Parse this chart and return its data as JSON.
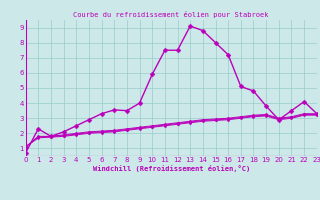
{
  "title": "Courbe du refroidissement éolien pour Stabroek",
  "xlabel": "Windchill (Refroidissement éolien,°C)",
  "background_color": "#cce8e8",
  "line_color": "#bb00bb",
  "grid_color": "#99cccc",
  "xmin": 0,
  "xmax": 23,
  "ymin": 0.5,
  "ymax": 9.5,
  "yticks": [
    1,
    2,
    3,
    4,
    5,
    6,
    7,
    8,
    9
  ],
  "xticks": [
    0,
    1,
    2,
    3,
    4,
    5,
    6,
    7,
    8,
    9,
    10,
    11,
    12,
    13,
    14,
    15,
    16,
    17,
    18,
    19,
    20,
    21,
    22,
    23
  ],
  "series": [
    {
      "x": [
        0,
        1,
        2,
        3,
        4,
        5,
        6,
        7,
        8,
        9,
        10,
        11,
        12,
        13,
        14,
        15,
        16,
        17,
        18,
        19,
        20,
        21,
        22,
        23
      ],
      "y": [
        0.7,
        2.3,
        1.8,
        2.1,
        2.5,
        2.9,
        3.3,
        3.55,
        3.5,
        4.0,
        5.9,
        7.5,
        7.5,
        9.1,
        8.8,
        8.0,
        7.2,
        5.1,
        4.8,
        3.8,
        2.9,
        3.5,
        4.1,
        3.3
      ],
      "lw": 1.0,
      "marker_size": 2.5
    },
    {
      "x": [
        0,
        1,
        2,
        3,
        4,
        5,
        6,
        7,
        8,
        9,
        10,
        11,
        12,
        13,
        14,
        15,
        16,
        17,
        18,
        19,
        20,
        21,
        22,
        23
      ],
      "y": [
        1.1,
        1.8,
        1.8,
        1.9,
        2.0,
        2.1,
        2.15,
        2.2,
        2.3,
        2.4,
        2.5,
        2.6,
        2.7,
        2.8,
        2.9,
        2.95,
        3.0,
        3.1,
        3.2,
        3.25,
        3.0,
        3.1,
        3.3,
        3.3
      ],
      "lw": 0.7,
      "marker_size": 1.5
    },
    {
      "x": [
        0,
        1,
        2,
        3,
        4,
        5,
        6,
        7,
        8,
        9,
        10,
        11,
        12,
        13,
        14,
        15,
        16,
        17,
        18,
        19,
        20,
        21,
        22,
        23
      ],
      "y": [
        1.1,
        1.75,
        1.8,
        1.85,
        1.95,
        2.05,
        2.1,
        2.15,
        2.25,
        2.35,
        2.45,
        2.55,
        2.65,
        2.75,
        2.85,
        2.9,
        2.95,
        3.05,
        3.15,
        3.2,
        2.95,
        3.05,
        3.25,
        3.25
      ],
      "lw": 0.7,
      "marker_size": 1.5
    },
    {
      "x": [
        0,
        1,
        2,
        3,
        4,
        5,
        6,
        7,
        8,
        9,
        10,
        11,
        12,
        13,
        14,
        15,
        16,
        17,
        18,
        19,
        20,
        21,
        22,
        23
      ],
      "y": [
        1.1,
        1.7,
        1.75,
        1.8,
        1.9,
        2.0,
        2.05,
        2.1,
        2.2,
        2.3,
        2.4,
        2.5,
        2.6,
        2.7,
        2.8,
        2.85,
        2.9,
        3.0,
        3.1,
        3.15,
        2.9,
        3.0,
        3.2,
        3.2
      ],
      "lw": 0.7,
      "marker_size": 1.5
    }
  ],
  "title_fontsize": 5,
  "xlabel_fontsize": 5,
  "tick_fontsize": 5
}
